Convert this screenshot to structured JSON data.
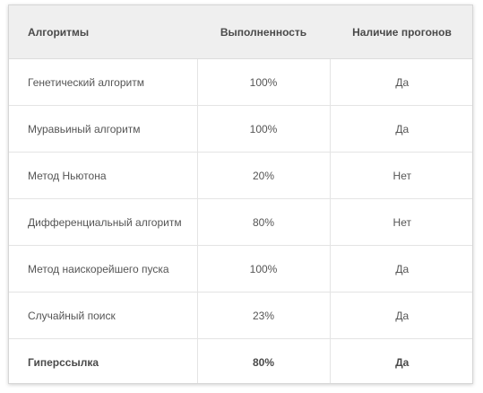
{
  "table": {
    "headers": [
      "Алгоритмы",
      "Выполненность",
      "Наличие прогонов"
    ],
    "rows": [
      [
        "Генетический алгоритм",
        "100%",
        "Да"
      ],
      [
        "Муравьиный алгоритм",
        "100%",
        "Да"
      ],
      [
        "Метод Ньютона",
        "20%",
        "Нет"
      ],
      [
        "Дифференциальный алгоритм",
        "80%",
        "Нет"
      ],
      [
        "Метод наискорейшего пуска",
        "100%",
        "Да"
      ],
      [
        "Случайный поиск",
        "23%",
        "Да"
      ],
      [
        "Гиперссылка",
        "80%",
        "Да"
      ]
    ]
  }
}
